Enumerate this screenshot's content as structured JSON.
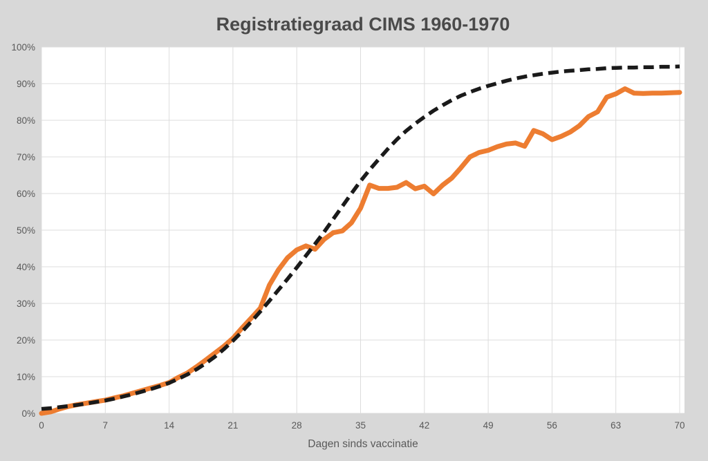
{
  "title": "Registratiegraad CIMS 1960-1970",
  "colors": {
    "background": "#d8d8d8",
    "plot_background": "#ffffff",
    "gridline": "#dcdcdc",
    "title_text": "#4a4a4a",
    "axis_text": "#595959",
    "series_orange": "#ED7D31",
    "series_black": "#1a1a1a"
  },
  "chart_data": {
    "type": "line",
    "title": "Registratiegraad CIMS 1960-1970",
    "xlabel": "Dagen sinds vaccinatie",
    "ylabel": "",
    "xlim": [
      0,
      70.5
    ],
    "ylim": [
      0,
      100
    ],
    "x_ticks": [
      0,
      7,
      14,
      21,
      28,
      35,
      42,
      49,
      56,
      63,
      70
    ],
    "y_ticks": [
      0,
      10,
      20,
      30,
      40,
      50,
      60,
      70,
      80,
      90,
      100
    ],
    "y_tick_suffix": "%",
    "grid": true,
    "legend_position": "none",
    "x": [
      0,
      1,
      2,
      3,
      4,
      5,
      6,
      7,
      8,
      9,
      10,
      11,
      12,
      13,
      14,
      15,
      16,
      17,
      18,
      19,
      20,
      21,
      22,
      23,
      24,
      25,
      26,
      27,
      28,
      29,
      30,
      31,
      32,
      33,
      34,
      35,
      36,
      37,
      38,
      39,
      40,
      41,
      42,
      43,
      44,
      45,
      46,
      47,
      48,
      49,
      50,
      51,
      52,
      53,
      54,
      55,
      56,
      57,
      58,
      59,
      60,
      61,
      62,
      63,
      64,
      65,
      66,
      67,
      68,
      69,
      70
    ],
    "series": [
      {
        "name": "solid-orange",
        "line_style": "solid",
        "color": "#ED7D31",
        "values": [
          0.0,
          0.4,
          1.2,
          1.9,
          2.4,
          2.8,
          3.2,
          3.6,
          4.2,
          4.8,
          5.5,
          6.2,
          6.9,
          7.6,
          8.4,
          9.8,
          11.0,
          12.7,
          14.5,
          16.4,
          18.3,
          20.5,
          23.3,
          26.0,
          28.7,
          35.0,
          39.2,
          42.5,
          44.6,
          45.7,
          44.8,
          47.5,
          49.3,
          49.8,
          52.0,
          56.0,
          62.3,
          61.4,
          61.4,
          61.7,
          63.0,
          61.3,
          62.0,
          59.9,
          62.3,
          64.2,
          67.0,
          70.0,
          71.2,
          71.8,
          72.8,
          73.5,
          73.8,
          72.9,
          77.2,
          76.3,
          74.7,
          75.6,
          76.8,
          78.5,
          81.0,
          82.3,
          86.3,
          87.2,
          88.6,
          87.4,
          87.3,
          87.4,
          87.4,
          87.5,
          87.6
        ]
      },
      {
        "name": "dashed-black",
        "line_style": "dashed",
        "color": "#1a1a1a",
        "values": [
          1.2,
          1.4,
          1.7,
          2.0,
          2.3,
          2.7,
          3.1,
          3.5,
          4.0,
          4.6,
          5.2,
          5.9,
          6.6,
          7.4,
          8.3,
          9.4,
          10.6,
          12.0,
          13.6,
          15.4,
          17.5,
          19.8,
          22.3,
          25.0,
          27.8,
          30.7,
          33.7,
          36.7,
          39.8,
          43.0,
          46.2,
          49.5,
          53.0,
          56.5,
          60.0,
          63.4,
          66.5,
          69.4,
          72.2,
          74.8,
          77.1,
          79.1,
          80.9,
          82.6,
          84.1,
          85.5,
          86.7,
          87.7,
          88.6,
          89.4,
          90.1,
          90.8,
          91.4,
          91.9,
          92.3,
          92.7,
          93.0,
          93.3,
          93.5,
          93.7,
          93.9,
          94.0,
          94.2,
          94.3,
          94.4,
          94.4,
          94.5,
          94.5,
          94.6,
          94.6,
          94.7
        ]
      }
    ]
  }
}
